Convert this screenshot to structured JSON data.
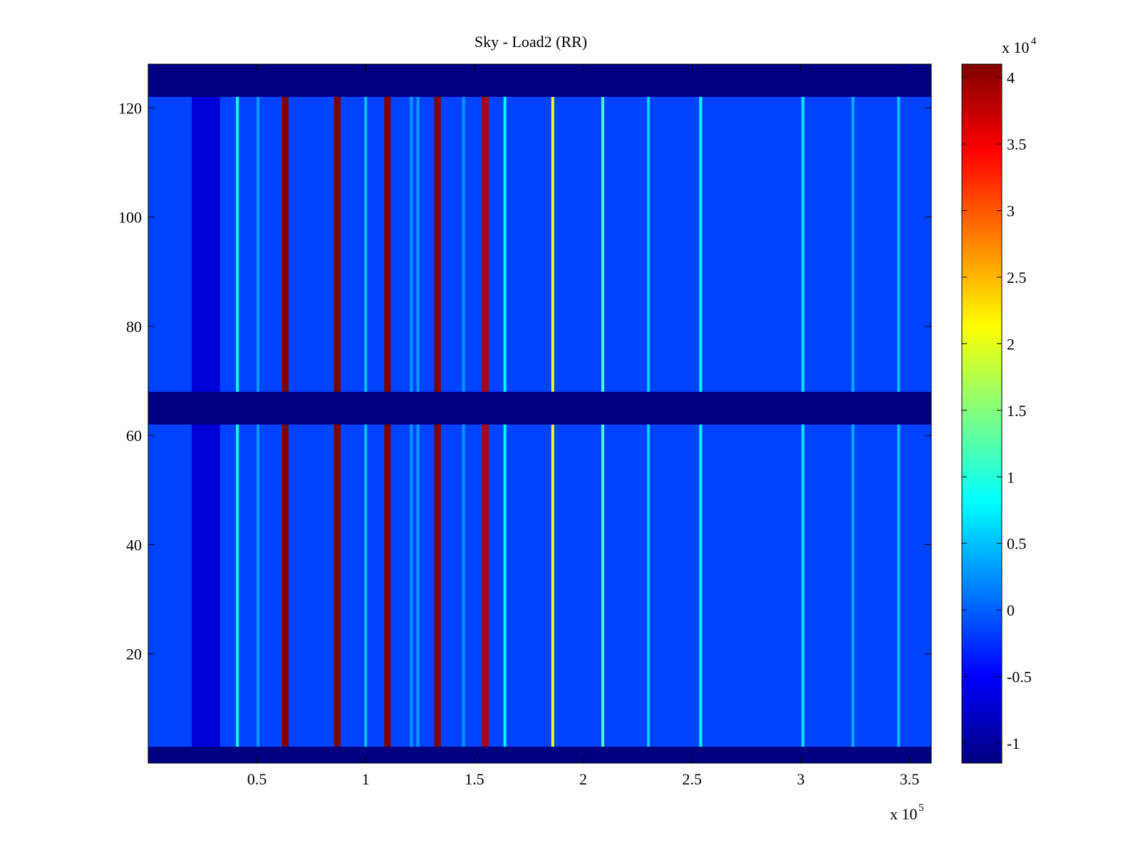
{
  "chart_data": {
    "type": "heatmap",
    "title": "Sky - Load2 (RR)",
    "xlabel": "",
    "ylabel": "",
    "xlim": [
      0,
      360000
    ],
    "ylim": [
      0,
      128
    ],
    "x_ticks": [
      50000,
      100000,
      150000,
      200000,
      250000,
      300000,
      350000
    ],
    "x_tick_labels": [
      "0.5",
      "1",
      "1.5",
      "2",
      "2.5",
      "3",
      "3.5"
    ],
    "x_multiplier": "x 10",
    "x_multiplier_exp": "5",
    "y_ticks": [
      20,
      40,
      60,
      80,
      100,
      120
    ],
    "y_tick_labels": [
      "20",
      "40",
      "60",
      "80",
      "100",
      "120"
    ],
    "colorbar": {
      "range": [
        -11500,
        41000
      ],
      "ticks": [
        -10000,
        -5000,
        0,
        5000,
        10000,
        15000,
        20000,
        25000,
        30000,
        35000,
        40000
      ],
      "tick_labels": [
        "-1",
        "-0.5",
        "0",
        "0.5",
        "1",
        "1.5",
        "2",
        "2.5",
        "3",
        "3.5",
        "4"
      ],
      "multiplier": "x 10",
      "multiplier_exp": "4",
      "colormap": "jet"
    },
    "background_value": -1500,
    "flagged_value": -11500,
    "flagged_rows": [
      [
        0,
        3
      ],
      [
        62,
        68
      ],
      [
        122,
        128
      ]
    ],
    "dark_region": {
      "x": [
        20000,
        33000
      ],
      "value": -7000
    },
    "channel_lines": [
      {
        "x": 41000,
        "value": 9000
      },
      {
        "x": 50500,
        "value": 3000
      },
      {
        "x": 63000,
        "value": 41000
      },
      {
        "x": 87000,
        "value": 41000
      },
      {
        "x": 100000,
        "value": 5000
      },
      {
        "x": 110000,
        "value": 41000
      },
      {
        "x": 121000,
        "value": 3000
      },
      {
        "x": 124000,
        "value": 3000
      },
      {
        "x": 133000,
        "value": 41000
      },
      {
        "x": 145000,
        "value": 3000
      },
      {
        "x": 155000,
        "value": 38000
      },
      {
        "x": 164000,
        "value": 8000
      },
      {
        "x": 186000,
        "value": 20000
      },
      {
        "x": 209000,
        "value": 12000
      },
      {
        "x": 230000,
        "value": 6000
      },
      {
        "x": 254000,
        "value": 8000
      },
      {
        "x": 301000,
        "value": 7000
      },
      {
        "x": 324000,
        "value": 4000
      },
      {
        "x": 345000,
        "value": 5000
      }
    ]
  }
}
